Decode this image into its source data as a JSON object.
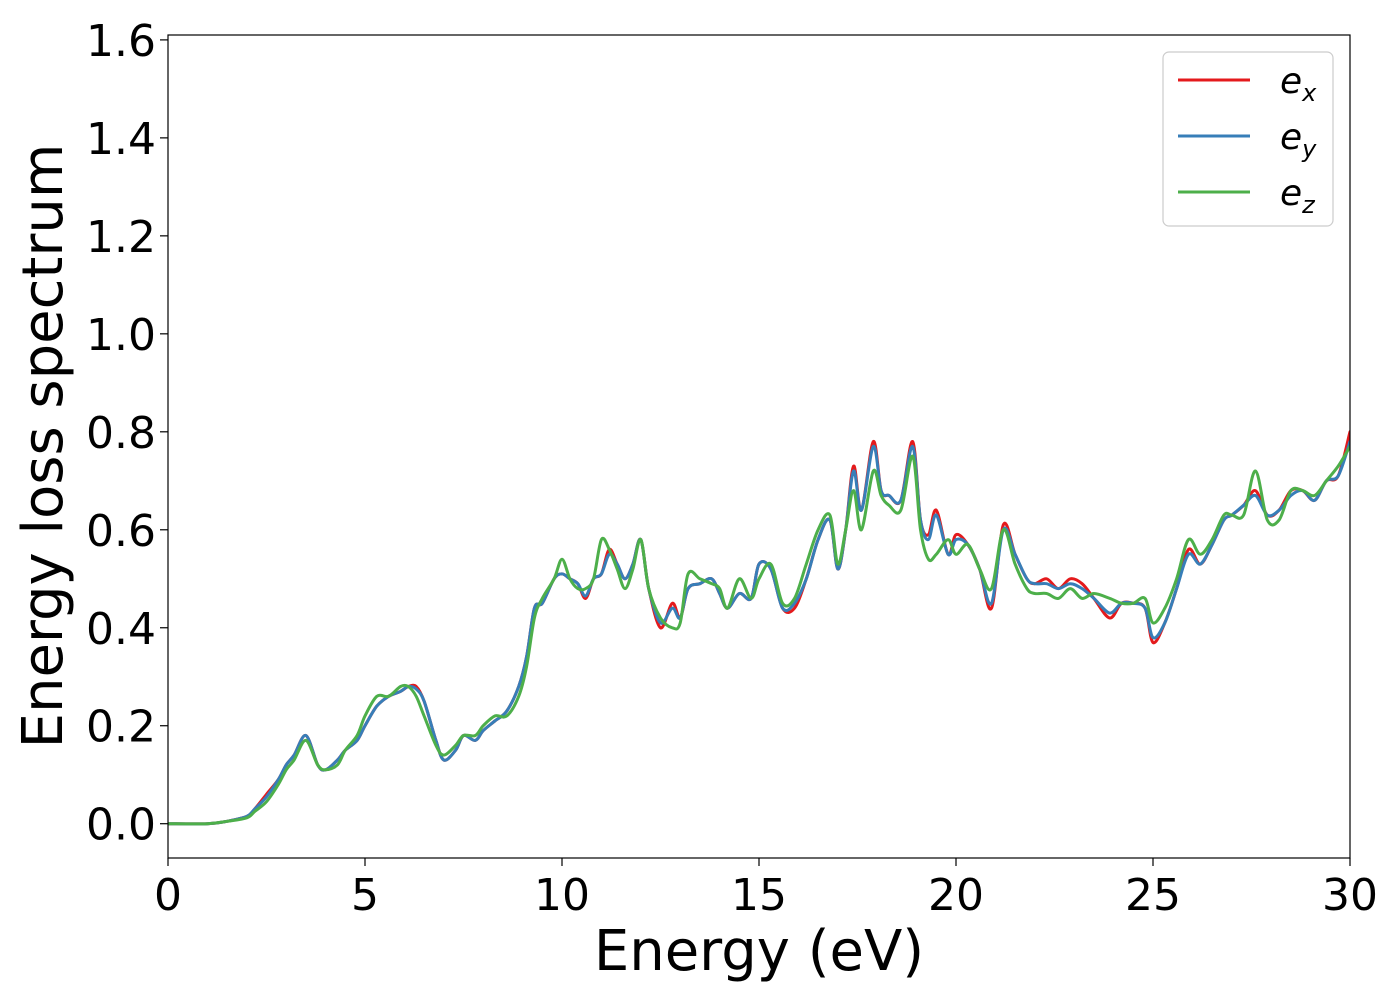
{
  "chart_data": {
    "type": "line",
    "title": "",
    "xlabel": "Energy (eV)",
    "ylabel": "Energy loss spectrum",
    "xlim": [
      0,
      30
    ],
    "ylim": [
      -0.07,
      1.61
    ],
    "xticks": [
      0,
      5,
      10,
      15,
      20,
      25,
      30
    ],
    "xtick_labels": [
      "0",
      "5",
      "10",
      "15",
      "20",
      "25",
      "30"
    ],
    "yticks": [
      0.0,
      0.2,
      0.4,
      0.6,
      0.8,
      1.0,
      1.2,
      1.4,
      1.6
    ],
    "ytick_labels": [
      "0.0",
      "0.2",
      "0.4",
      "0.6",
      "0.8",
      "1.0",
      "1.2",
      "1.4",
      "1.6"
    ],
    "grid": false,
    "legend_position": "top-right",
    "series": [
      {
        "name": "e_x",
        "legend_base": "e",
        "legend_sub": "x",
        "color": "#e41a1c",
        "x": [
          0,
          1,
          1.5,
          2,
          2.2,
          2.5,
          2.8,
          3.0,
          3.2,
          3.5,
          3.8,
          4.0,
          4.3,
          4.5,
          4.8,
          5.0,
          5.3,
          5.6,
          5.9,
          6.1,
          6.3,
          6.5,
          6.8,
          7.0,
          7.3,
          7.5,
          7.8,
          8.0,
          8.3,
          8.6,
          8.9,
          9.1,
          9.3,
          9.5,
          9.8,
          10.0,
          10.2,
          10.4,
          10.6,
          10.8,
          11.0,
          11.2,
          11.4,
          11.6,
          11.8,
          12.0,
          12.2,
          12.5,
          12.8,
          13.0,
          13.2,
          13.5,
          13.8,
          14.0,
          14.2,
          14.5,
          14.8,
          15.0,
          15.3,
          15.6,
          15.9,
          16.2,
          16.5,
          16.8,
          17.0,
          17.2,
          17.4,
          17.6,
          17.9,
          18.1,
          18.3,
          18.6,
          18.9,
          19.1,
          19.3,
          19.5,
          19.8,
          20.0,
          20.3,
          20.6,
          20.9,
          21.2,
          21.5,
          21.8,
          22.0,
          22.3,
          22.6,
          22.9,
          23.2,
          23.5,
          23.9,
          24.2,
          24.5,
          24.8,
          25.0,
          25.3,
          25.6,
          25.9,
          26.2,
          26.5,
          26.8,
          27.0,
          27.3,
          27.6,
          27.9,
          28.2,
          28.5,
          28.8,
          29.1,
          29.4,
          29.7,
          30.0
        ],
        "y": [
          0.0,
          0.0,
          0.005,
          0.015,
          0.03,
          0.06,
          0.09,
          0.12,
          0.14,
          0.18,
          0.12,
          0.11,
          0.13,
          0.15,
          0.17,
          0.2,
          0.24,
          0.26,
          0.27,
          0.28,
          0.28,
          0.25,
          0.17,
          0.13,
          0.15,
          0.18,
          0.17,
          0.19,
          0.21,
          0.23,
          0.28,
          0.34,
          0.44,
          0.45,
          0.5,
          0.51,
          0.5,
          0.49,
          0.46,
          0.5,
          0.51,
          0.56,
          0.53,
          0.5,
          0.53,
          0.58,
          0.48,
          0.4,
          0.45,
          0.42,
          0.48,
          0.49,
          0.5,
          0.47,
          0.44,
          0.47,
          0.46,
          0.53,
          0.52,
          0.44,
          0.44,
          0.5,
          0.58,
          0.62,
          0.52,
          0.6,
          0.73,
          0.64,
          0.78,
          0.68,
          0.67,
          0.66,
          0.78,
          0.62,
          0.59,
          0.64,
          0.55,
          0.59,
          0.57,
          0.52,
          0.44,
          0.61,
          0.55,
          0.5,
          0.49,
          0.5,
          0.48,
          0.5,
          0.49,
          0.46,
          0.42,
          0.45,
          0.45,
          0.44,
          0.37,
          0.41,
          0.48,
          0.56,
          0.53,
          0.57,
          0.62,
          0.63,
          0.65,
          0.68,
          0.63,
          0.64,
          0.68,
          0.68,
          0.66,
          0.7,
          0.71,
          0.8
        ]
      },
      {
        "name": "e_y",
        "legend_base": "e",
        "legend_sub": "y",
        "color": "#377eb8",
        "x": [
          0,
          1,
          1.5,
          2,
          2.2,
          2.5,
          2.8,
          3.0,
          3.2,
          3.5,
          3.8,
          4.0,
          4.3,
          4.5,
          4.8,
          5.0,
          5.3,
          5.6,
          5.9,
          6.1,
          6.3,
          6.5,
          6.8,
          7.0,
          7.3,
          7.5,
          7.8,
          8.0,
          8.3,
          8.6,
          8.9,
          9.1,
          9.3,
          9.5,
          9.8,
          10.0,
          10.2,
          10.4,
          10.6,
          10.8,
          11.0,
          11.2,
          11.4,
          11.6,
          11.8,
          12.0,
          12.2,
          12.5,
          12.8,
          13.0,
          13.2,
          13.5,
          13.8,
          14.0,
          14.2,
          14.5,
          14.8,
          15.0,
          15.3,
          15.6,
          15.9,
          16.2,
          16.5,
          16.8,
          17.0,
          17.2,
          17.4,
          17.6,
          17.9,
          18.1,
          18.3,
          18.6,
          18.9,
          19.1,
          19.3,
          19.5,
          19.8,
          20.0,
          20.3,
          20.6,
          20.9,
          21.2,
          21.5,
          21.8,
          22.0,
          22.3,
          22.6,
          22.9,
          23.2,
          23.5,
          23.9,
          24.2,
          24.5,
          24.8,
          25.0,
          25.3,
          25.6,
          25.9,
          26.2,
          26.5,
          26.8,
          27.0,
          27.3,
          27.6,
          27.9,
          28.2,
          28.5,
          28.8,
          29.1,
          29.4,
          29.7,
          30.0
        ],
        "y": [
          0.0,
          0.0,
          0.005,
          0.015,
          0.03,
          0.055,
          0.09,
          0.12,
          0.14,
          0.18,
          0.12,
          0.11,
          0.13,
          0.15,
          0.17,
          0.2,
          0.24,
          0.26,
          0.27,
          0.28,
          0.275,
          0.25,
          0.17,
          0.13,
          0.15,
          0.18,
          0.17,
          0.19,
          0.21,
          0.23,
          0.28,
          0.34,
          0.44,
          0.45,
          0.5,
          0.51,
          0.5,
          0.49,
          0.465,
          0.5,
          0.51,
          0.55,
          0.53,
          0.5,
          0.53,
          0.58,
          0.48,
          0.41,
          0.44,
          0.42,
          0.48,
          0.49,
          0.5,
          0.47,
          0.44,
          0.47,
          0.46,
          0.53,
          0.52,
          0.44,
          0.45,
          0.5,
          0.58,
          0.62,
          0.52,
          0.6,
          0.72,
          0.64,
          0.77,
          0.68,
          0.67,
          0.66,
          0.77,
          0.62,
          0.58,
          0.63,
          0.55,
          0.58,
          0.57,
          0.52,
          0.45,
          0.6,
          0.55,
          0.5,
          0.49,
          0.49,
          0.48,
          0.49,
          0.48,
          0.46,
          0.43,
          0.45,
          0.45,
          0.44,
          0.38,
          0.41,
          0.48,
          0.55,
          0.53,
          0.57,
          0.62,
          0.63,
          0.65,
          0.67,
          0.63,
          0.64,
          0.67,
          0.68,
          0.66,
          0.7,
          0.71,
          0.78
        ]
      },
      {
        "name": "e_z",
        "legend_base": "e",
        "legend_sub": "z",
        "color": "#4daf4a",
        "x": [
          0,
          1,
          1.5,
          2,
          2.2,
          2.5,
          2.8,
          3.0,
          3.2,
          3.5,
          3.8,
          4.0,
          4.3,
          4.5,
          4.8,
          5.0,
          5.3,
          5.6,
          5.9,
          6.1,
          6.3,
          6.5,
          6.8,
          7.0,
          7.3,
          7.5,
          7.8,
          8.0,
          8.3,
          8.6,
          8.9,
          9.1,
          9.3,
          9.5,
          9.8,
          10.0,
          10.2,
          10.4,
          10.6,
          10.8,
          11.0,
          11.2,
          11.4,
          11.6,
          11.8,
          12.0,
          12.2,
          12.5,
          12.8,
          13.0,
          13.2,
          13.5,
          13.8,
          14.0,
          14.2,
          14.5,
          14.8,
          15.0,
          15.3,
          15.6,
          15.9,
          16.2,
          16.5,
          16.8,
          17.0,
          17.2,
          17.4,
          17.6,
          17.9,
          18.1,
          18.3,
          18.6,
          18.9,
          19.1,
          19.3,
          19.5,
          19.8,
          20.0,
          20.3,
          20.6,
          20.9,
          21.2,
          21.5,
          21.8,
          22.0,
          22.3,
          22.6,
          22.9,
          23.2,
          23.5,
          23.9,
          24.2,
          24.5,
          24.8,
          25.0,
          25.3,
          25.6,
          25.9,
          26.2,
          26.5,
          26.8,
          27.0,
          27.3,
          27.6,
          27.9,
          28.2,
          28.5,
          28.8,
          29.1,
          29.4,
          29.7,
          30.0
        ],
        "y": [
          0.0,
          0.0,
          0.005,
          0.012,
          0.025,
          0.045,
          0.08,
          0.11,
          0.13,
          0.17,
          0.12,
          0.11,
          0.12,
          0.15,
          0.18,
          0.22,
          0.26,
          0.26,
          0.28,
          0.28,
          0.26,
          0.22,
          0.16,
          0.14,
          0.16,
          0.18,
          0.18,
          0.2,
          0.22,
          0.22,
          0.26,
          0.32,
          0.42,
          0.46,
          0.5,
          0.54,
          0.5,
          0.48,
          0.48,
          0.5,
          0.58,
          0.56,
          0.52,
          0.48,
          0.52,
          0.58,
          0.48,
          0.42,
          0.4,
          0.41,
          0.51,
          0.5,
          0.49,
          0.48,
          0.44,
          0.5,
          0.46,
          0.5,
          0.53,
          0.45,
          0.46,
          0.53,
          0.6,
          0.63,
          0.53,
          0.6,
          0.68,
          0.6,
          0.72,
          0.67,
          0.65,
          0.64,
          0.75,
          0.6,
          0.54,
          0.55,
          0.58,
          0.55,
          0.57,
          0.52,
          0.48,
          0.6,
          0.53,
          0.48,
          0.47,
          0.47,
          0.46,
          0.48,
          0.46,
          0.47,
          0.46,
          0.45,
          0.45,
          0.46,
          0.41,
          0.44,
          0.5,
          0.58,
          0.55,
          0.58,
          0.63,
          0.63,
          0.63,
          0.72,
          0.62,
          0.62,
          0.68,
          0.68,
          0.67,
          0.7,
          0.73,
          0.77
        ]
      }
    ]
  }
}
